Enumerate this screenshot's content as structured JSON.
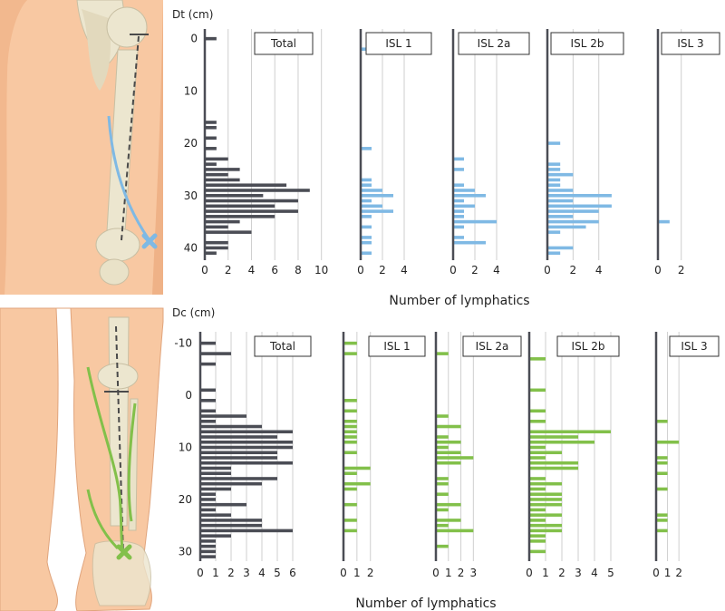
{
  "colors": {
    "total": "#4b4d55",
    "thigh": "#7fb9e4",
    "calf": "#82c04a",
    "skin": "#f8c8a2",
    "bone": "#ece6cf"
  },
  "xlabel_top": "Number of lymphatics",
  "xlabel_bottom": "Number of lymphatics",
  "chart_data": [
    {
      "type": "bar",
      "ylabel": "Dt (cm)",
      "y_ticks": [
        0,
        10,
        20,
        30,
        40
      ],
      "ylim": [
        -1.5,
        42
      ],
      "panels": [
        {
          "title": "Total",
          "x_ticks": [
            0,
            2,
            4,
            6,
            8,
            10
          ],
          "xlim": [
            0,
            11.5
          ],
          "bars": [
            [
              0,
              1
            ],
            [
              16,
              1
            ],
            [
              17,
              1
            ],
            [
              19,
              1
            ],
            [
              21,
              1
            ],
            [
              23,
              2
            ],
            [
              24,
              1
            ],
            [
              25,
              3
            ],
            [
              26,
              2
            ],
            [
              27,
              3
            ],
            [
              28,
              7
            ],
            [
              29,
              9
            ],
            [
              30,
              5
            ],
            [
              31,
              8
            ],
            [
              32,
              6
            ],
            [
              33,
              8
            ],
            [
              34,
              6
            ],
            [
              35,
              3
            ],
            [
              36,
              2
            ],
            [
              37,
              4
            ],
            [
              39,
              2
            ],
            [
              40,
              2
            ],
            [
              41,
              1
            ]
          ]
        },
        {
          "title": "ISL 1",
          "x_ticks": [
            0,
            2,
            4
          ],
          "xlim": [
            0,
            5
          ],
          "bars": [
            [
              2,
              1
            ],
            [
              21,
              1
            ],
            [
              27,
              1
            ],
            [
              28,
              1
            ],
            [
              29,
              2
            ],
            [
              30,
              3
            ],
            [
              31,
              1
            ],
            [
              32,
              2
            ],
            [
              33,
              3
            ],
            [
              34,
              1
            ],
            [
              36,
              1
            ],
            [
              38,
              1
            ],
            [
              39,
              1
            ],
            [
              41,
              1
            ]
          ]
        },
        {
          "title": "ISL 2a",
          "x_ticks": [
            0,
            2,
            4
          ],
          "xlim": [
            0,
            5
          ],
          "bars": [
            [
              23,
              1
            ],
            [
              25,
              1
            ],
            [
              28,
              1
            ],
            [
              29,
              2
            ],
            [
              30,
              3
            ],
            [
              31,
              1
            ],
            [
              32,
              2
            ],
            [
              33,
              1
            ],
            [
              34,
              1
            ],
            [
              35,
              4
            ],
            [
              36,
              1
            ],
            [
              38,
              1
            ],
            [
              39,
              3
            ]
          ]
        },
        {
          "title": "ISL 2b",
          "x_ticks": [
            0,
            2,
            4
          ],
          "xlim": [
            0,
            5.5
          ],
          "bars": [
            [
              20,
              1
            ],
            [
              24,
              1
            ],
            [
              25,
              1
            ],
            [
              26,
              2
            ],
            [
              27,
              1
            ],
            [
              28,
              1
            ],
            [
              29,
              2
            ],
            [
              30,
              5
            ],
            [
              31,
              2
            ],
            [
              32,
              5
            ],
            [
              33,
              4
            ],
            [
              34,
              2
            ],
            [
              35,
              4
            ],
            [
              36,
              3
            ],
            [
              37,
              1
            ],
            [
              40,
              2
            ],
            [
              41,
              1
            ]
          ]
        },
        {
          "title": "ISL 3",
          "x_ticks": [
            0,
            2
          ],
          "xlim": [
            0,
            3.5
          ],
          "bars": [
            [
              35,
              1
            ]
          ]
        }
      ]
    },
    {
      "type": "bar",
      "ylabel": "Dc (cm)",
      "y_ticks": [
        -10,
        0,
        10,
        20,
        30
      ],
      "ylim": [
        -11.5,
        31.5
      ],
      "panels": [
        {
          "title": "Total",
          "x_ticks": [
            0,
            1,
            2,
            3,
            4,
            5,
            6
          ],
          "xlim": [
            0,
            7
          ],
          "bars": [
            [
              -10,
              1
            ],
            [
              -8,
              2
            ],
            [
              -6,
              1
            ],
            [
              -1,
              1
            ],
            [
              1,
              1
            ],
            [
              3,
              1
            ],
            [
              4,
              3
            ],
            [
              5,
              1
            ],
            [
              6,
              4
            ],
            [
              7,
              6
            ],
            [
              8,
              5
            ],
            [
              9,
              6
            ],
            [
              10,
              6
            ],
            [
              11,
              5
            ],
            [
              12,
              5
            ],
            [
              13,
              6
            ],
            [
              14,
              2
            ],
            [
              15,
              2
            ],
            [
              16,
              5
            ],
            [
              17,
              4
            ],
            [
              18,
              2
            ],
            [
              19,
              1
            ],
            [
              20,
              1
            ],
            [
              21,
              3
            ],
            [
              22,
              1
            ],
            [
              23,
              2
            ],
            [
              24,
              4
            ],
            [
              25,
              4
            ],
            [
              26,
              6
            ],
            [
              27,
              2
            ],
            [
              28,
              1
            ],
            [
              29,
              1
            ],
            [
              30,
              1
            ],
            [
              31,
              1
            ]
          ]
        },
        {
          "title": "ISL 1",
          "x_ticks": [
            0,
            1,
            2
          ],
          "xlim": [
            0,
            3.5
          ],
          "bars": [
            [
              -10,
              1
            ],
            [
              -8,
              1
            ],
            [
              1,
              1
            ],
            [
              3,
              1
            ],
            [
              5,
              1
            ],
            [
              6,
              1
            ],
            [
              7,
              1
            ],
            [
              8,
              1
            ],
            [
              9,
              1
            ],
            [
              11,
              1
            ],
            [
              14,
              2
            ],
            [
              15,
              1
            ],
            [
              17,
              2
            ],
            [
              18,
              1
            ],
            [
              21,
              1
            ],
            [
              24,
              1
            ],
            [
              26,
              1
            ]
          ]
        },
        {
          "title": "ISL 2a",
          "x_ticks": [
            0,
            1,
            2,
            3
          ],
          "xlim": [
            0,
            4.5
          ],
          "bars": [
            [
              -8,
              1
            ],
            [
              4,
              1
            ],
            [
              6,
              2
            ],
            [
              8,
              1
            ],
            [
              9,
              2
            ],
            [
              10,
              1
            ],
            [
              11,
              2
            ],
            [
              12,
              3
            ],
            [
              13,
              2
            ],
            [
              16,
              1
            ],
            [
              17,
              1
            ],
            [
              19,
              1
            ],
            [
              21,
              2
            ],
            [
              22,
              1
            ],
            [
              24,
              2
            ],
            [
              25,
              1
            ],
            [
              26,
              3
            ],
            [
              29,
              1
            ]
          ]
        },
        {
          "title": "ISL 2b",
          "x_ticks": [
            0,
            1,
            2,
            3,
            4,
            5
          ],
          "xlim": [
            0,
            6
          ],
          "bars": [
            [
              -7,
              1
            ],
            [
              -1,
              1
            ],
            [
              3,
              1
            ],
            [
              5,
              1
            ],
            [
              7,
              5
            ],
            [
              8,
              3
            ],
            [
              9,
              4
            ],
            [
              10,
              1
            ],
            [
              11,
              2
            ],
            [
              12,
              1
            ],
            [
              13,
              3
            ],
            [
              14,
              3
            ],
            [
              16,
              1
            ],
            [
              17,
              2
            ],
            [
              18,
              1
            ],
            [
              19,
              2
            ],
            [
              20,
              2
            ],
            [
              21,
              2
            ],
            [
              22,
              1
            ],
            [
              23,
              2
            ],
            [
              24,
              1
            ],
            [
              25,
              2
            ],
            [
              26,
              2
            ],
            [
              27,
              1
            ],
            [
              28,
              1
            ],
            [
              30,
              1
            ]
          ]
        },
        {
          "title": "ISL 3",
          "x_ticks": [
            0,
            1,
            2
          ],
          "xlim": [
            0,
            3.5
          ],
          "bars": [
            [
              5,
              1
            ],
            [
              9,
              2
            ],
            [
              12,
              1
            ],
            [
              13,
              1
            ],
            [
              15,
              1
            ],
            [
              18,
              1
            ],
            [
              23,
              1
            ],
            [
              24,
              1
            ],
            [
              26,
              1
            ]
          ]
        }
      ]
    }
  ]
}
